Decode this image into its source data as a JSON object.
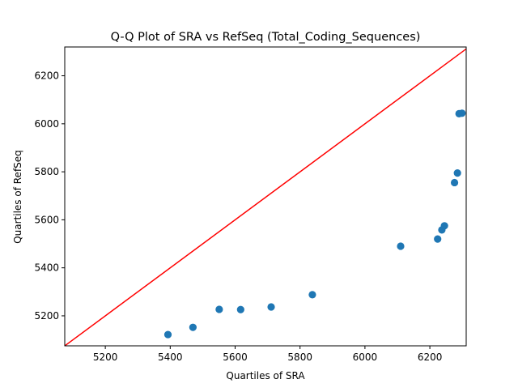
{
  "chart_data": {
    "type": "scatter",
    "title": "Q-Q Plot of SRA vs RefSeq (Total_Coding_Sequences)",
    "xlabel": "Quartiles of SRA",
    "ylabel": "Quartiles of RefSeq",
    "xlim": [
      5075,
      6312
    ],
    "ylim": [
      5075,
      6320
    ],
    "xticks": [
      5200,
      5400,
      5600,
      5800,
      6000,
      6200
    ],
    "yticks": [
      5200,
      5400,
      5600,
      5800,
      6000,
      6200
    ],
    "grid": false,
    "legend": "none",
    "series": [
      {
        "points": [
          {
            "x": 5393,
            "y": 5122
          },
          {
            "x": 5470,
            "y": 5152
          },
          {
            "x": 5551,
            "y": 5227
          },
          {
            "x": 5617,
            "y": 5226
          },
          {
            "x": 5711,
            "y": 5237
          },
          {
            "x": 5838,
            "y": 5288
          },
          {
            "x": 6110,
            "y": 5490
          },
          {
            "x": 6224,
            "y": 5520
          },
          {
            "x": 6237,
            "y": 5558
          },
          {
            "x": 6245,
            "y": 5575
          },
          {
            "x": 6276,
            "y": 5755
          },
          {
            "x": 6285,
            "y": 5795
          },
          {
            "x": 6290,
            "y": 6042
          },
          {
            "x": 6299,
            "y": 6044
          }
        ]
      }
    ],
    "reference_line": {
      "from": [
        5075,
        5075
      ],
      "to": [
        6320,
        6320
      ]
    },
    "colors": {
      "points": "#1f77b4",
      "reference_line": "#ff0000",
      "axes": "#000000"
    }
  }
}
